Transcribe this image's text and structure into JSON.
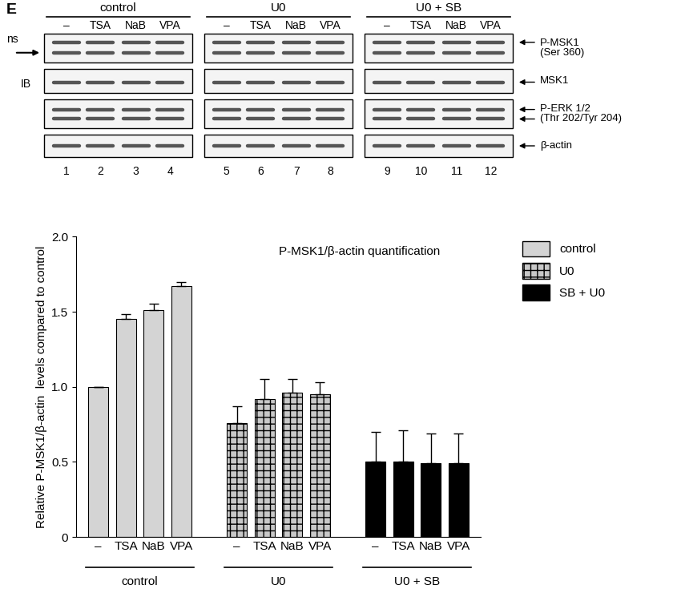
{
  "panel_label": "E",
  "blot": {
    "groups": [
      "control",
      "U0",
      "U0 + SB"
    ],
    "lanes": [
      "–",
      "TSA",
      "NaB",
      "VPA"
    ],
    "lane_numbers": [
      1,
      2,
      3,
      4,
      5,
      6,
      7,
      8,
      9,
      10,
      11,
      12
    ],
    "left_labels": [
      "ns",
      "IB"
    ],
    "rows": [
      [
        "P-MSK1",
        "(Ser 360)"
      ],
      [
        "MSK1"
      ],
      [
        "P-ERK 1/2",
        "(Thr 202/Tyr 204)"
      ],
      [
        "β-actin"
      ]
    ]
  },
  "chart_data": {
    "type": "bar",
    "title": "P-MSK1/β-actin quantification",
    "y_label": "Relative P-MSK1/β-actin  levels compared to control",
    "categories": [
      "–",
      "TSA",
      "NaB",
      "VPA"
    ],
    "series": [
      {
        "name": "control",
        "group_label": "control",
        "color": "#d4d4d4",
        "values": [
          1.0,
          1.45,
          1.51,
          1.67
        ],
        "errors": [
          0,
          0.035,
          0.045,
          0.03
        ]
      },
      {
        "name": "U0",
        "group_label": "U0",
        "color": "#c8c8c8",
        "values": [
          0.76,
          0.92,
          0.96,
          0.95
        ],
        "errors": [
          0.11,
          0.13,
          0.09,
          0.08
        ]
      },
      {
        "name": "SB + U0",
        "group_label": "U0 + SB",
        "color": "#000000",
        "values": [
          0.5,
          0.5,
          0.49,
          0.49
        ],
        "errors": [
          0.2,
          0.21,
          0.2,
          0.2
        ]
      }
    ],
    "ylim": [
      0,
      2
    ],
    "yticks": [
      0,
      0.5,
      {
        "value": 1,
        "label": "1.0"
      },
      1.5,
      {
        "value": 2,
        "label": "2.0"
      }
    ],
    "legend": "upper left"
  }
}
